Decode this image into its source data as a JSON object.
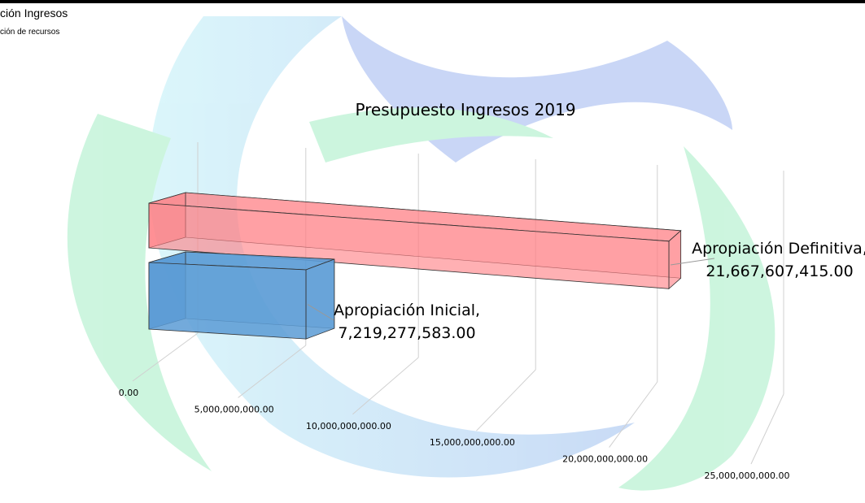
{
  "header": {
    "title": "ción Ingresos",
    "subtitle": "ción de recursos"
  },
  "chart_data": {
    "type": "bar3d",
    "title": "Presupuesto Ingresos 2019",
    "categories": [
      "Apropiación Inicial,",
      "Apropiación Definitiva,"
    ],
    "values": [
      7219277583,
      21667607415
    ],
    "value_labels": [
      "7,219,277,583.00",
      "21,667,607,415.00"
    ],
    "colors": [
      "#5b9bd5",
      "#ff7c80"
    ],
    "xlim": [
      0,
      25000000000
    ],
    "xticks": [
      {
        "value": 0,
        "label": "0.00"
      },
      {
        "value": 5000000000,
        "label": "5,000,000,000.00"
      },
      {
        "value": 10000000000,
        "label": "10,000,000,000.00"
      },
      {
        "value": 15000000000,
        "label": "15,000,000,000.00"
      },
      {
        "value": 20000000000,
        "label": "20,000,000,000.00"
      },
      {
        "value": 25000000000,
        "label": "25,000,000,000.00"
      }
    ],
    "grid": true
  }
}
